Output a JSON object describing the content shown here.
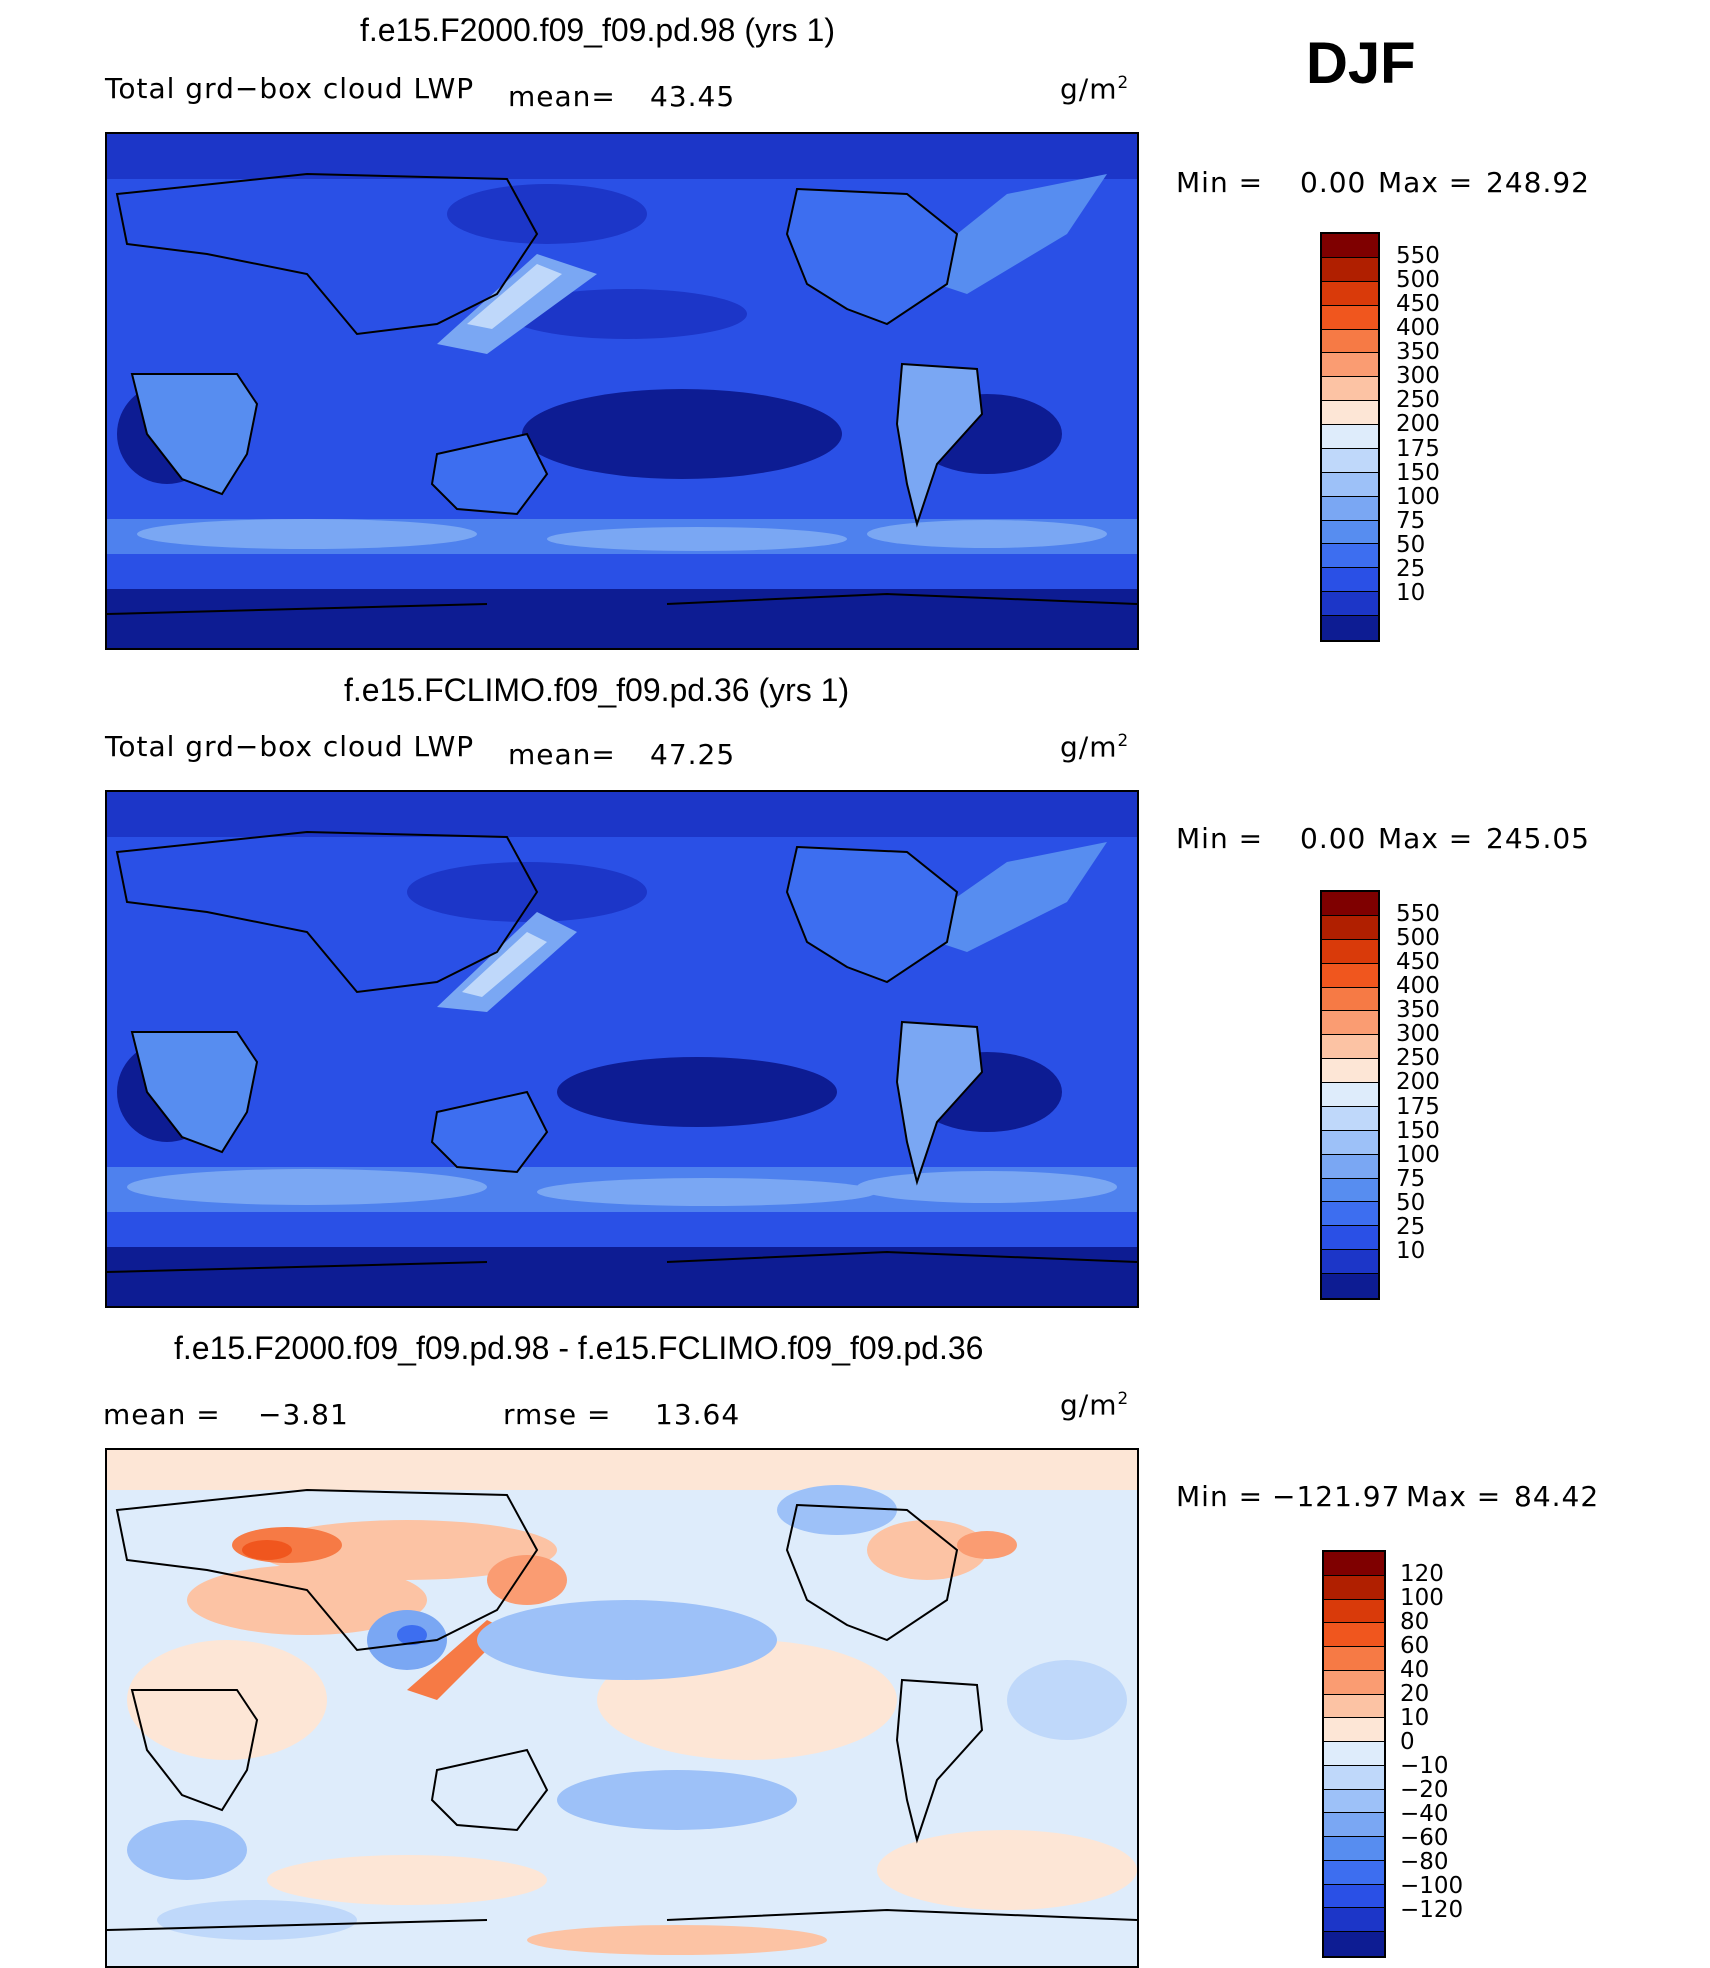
{
  "season": "DJF",
  "panels": [
    {
      "title": "f.e15.F2000.f09_f09.pd.98 (yrs 1)",
      "variable": "Total grd−box cloud LWP",
      "stat1_label": "mean=",
      "stat1_value": "43.45",
      "units": "g/m",
      "units_exp": "2",
      "minmax": {
        "min_label": "Min =",
        "min": "0.00",
        "max_label": "Max =",
        "max": "248.92"
      },
      "colorbar": {
        "labels": [
          "550",
          "500",
          "450",
          "400",
          "350",
          "300",
          "250",
          "200",
          "175",
          "150",
          "100",
          "75",
          "50",
          "25",
          "10"
        ],
        "colors": [
          "#7f0000",
          "#b01f00",
          "#d93a0a",
          "#f0561e",
          "#f67a45",
          "#fa9c72",
          "#fcc3a4",
          "#fde6d6",
          "#deecfb",
          "#bfd8fa",
          "#9dc1f8",
          "#7aa7f3",
          "#578df0",
          "#3d6ef0",
          "#2a50e6",
          "#1c36c8",
          "#0d1c93"
        ]
      }
    },
    {
      "title": "f.e15.FCLIMO.f09_f09.pd.36 (yrs 1)",
      "variable": "Total grd−box cloud LWP",
      "stat1_label": "mean=",
      "stat1_value": "47.25",
      "units": "g/m",
      "units_exp": "2",
      "minmax": {
        "min_label": "Min =",
        "min": "0.00",
        "max_label": "Max =",
        "max": "245.05"
      },
      "colorbar": {
        "labels": [
          "550",
          "500",
          "450",
          "400",
          "350",
          "300",
          "250",
          "200",
          "175",
          "150",
          "100",
          "75",
          "50",
          "25",
          "10"
        ],
        "colors": [
          "#7f0000",
          "#b01f00",
          "#d93a0a",
          "#f0561e",
          "#f67a45",
          "#fa9c72",
          "#fcc3a4",
          "#fde6d6",
          "#deecfb",
          "#bfd8fa",
          "#9dc1f8",
          "#7aa7f3",
          "#578df0",
          "#3d6ef0",
          "#2a50e6",
          "#1c36c8",
          "#0d1c93"
        ]
      }
    },
    {
      "title": "f.e15.F2000.f09_f09.pd.98 - f.e15.FCLIMO.f09_f09.pd.36",
      "stat1_label": "mean =",
      "stat1_value": "−3.81",
      "stat2_label": "rmse =",
      "stat2_value": "13.64",
      "units": "g/m",
      "units_exp": "2",
      "minmax": {
        "min_label": "Min =",
        "min": "−121.97",
        "max_label": "Max =",
        "max": "84.42"
      },
      "colorbar": {
        "labels": [
          "120",
          "100",
          "80",
          "60",
          "40",
          "20",
          "10",
          "0",
          "−10",
          "−20",
          "−40",
          "−60",
          "−80",
          "−100",
          "−120"
        ],
        "colors": [
          "#7f0000",
          "#b01f00",
          "#d93a0a",
          "#f0561e",
          "#f67a45",
          "#fa9c72",
          "#fcc3a4",
          "#fde6d6",
          "#deecfb",
          "#bfd8fa",
          "#9dc1f8",
          "#7aa7f3",
          "#578df0",
          "#3d6ef0",
          "#2a50e6",
          "#1c36c8",
          "#0d1c93"
        ]
      }
    }
  ]
}
